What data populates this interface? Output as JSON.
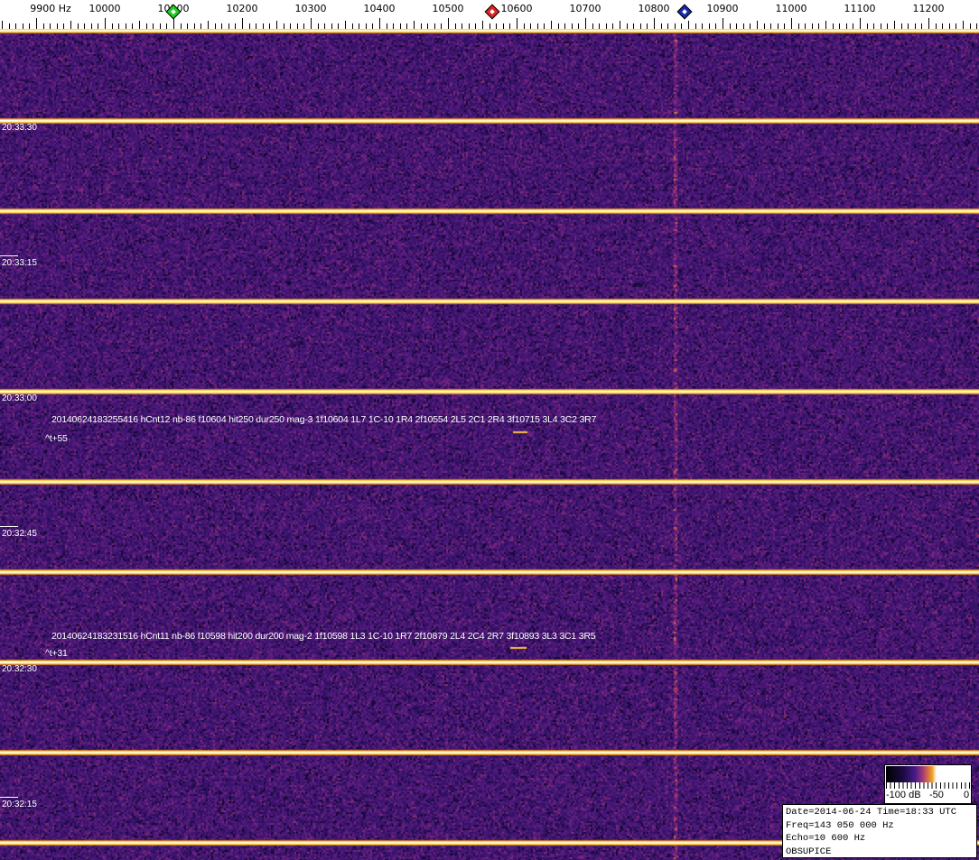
{
  "chart_data": {
    "type": "heatmap",
    "x_axis": {
      "unit_label": "9900 Hz",
      "ticks": [
        "10000",
        "10100",
        "10200",
        "10300",
        "10400",
        "10500",
        "10600",
        "10700",
        "10800",
        "10900",
        "11000",
        "11100",
        "11200"
      ],
      "range_hz": [
        9870,
        11280
      ],
      "position": "top"
    },
    "y_axis": {
      "time_labels": [
        "20:33:30",
        "20:33:15",
        "20:33:00",
        "20:32:45",
        "20:32:30",
        "20:32:15"
      ],
      "direction": "time decreasing downward"
    },
    "markers": [
      {
        "name": "green-marker",
        "freq_hz": 10100,
        "color": "#22cc22"
      },
      {
        "name": "red-marker",
        "freq_hz": 10565,
        "color": "#dd2222"
      },
      {
        "name": "blue-marker",
        "freq_hz": 10845,
        "color": "#1a2aa8"
      }
    ],
    "colorbar": {
      "labels": [
        "-100 dB",
        "-50",
        "0"
      ],
      "range_db": [
        -100,
        0
      ],
      "colormap": "black-purple-orange-white"
    },
    "annotations": [
      {
        "text": "20140624183255416 hCnt12 nb-86 f10604 hit250 dur250 mag-3 1f10604 1L7 1C-10 1R4 2f10554 2L5 2C1 2R4 3f10715 3L4 3C2 3R7",
        "offset": "^t+55"
      },
      {
        "text": "20140624183231516 hCnt11 nb-86 f10598 hit200 dur200 mag-2 1f10598 1L3 1C-10 1R7 2f10879 2L4 2C4 2R7 3f10893 3L3 3C1 3R5",
        "offset": "^t+31"
      }
    ],
    "features": {
      "horizontal_bands_every_s": 10,
      "carrier_freq_hz": 10830
    }
  },
  "info": {
    "line1": "Date=2014-06-24 Time=18:33 UTC",
    "line2": "Freq=143 050 000 Hz",
    "line3": "Echo=10 600 Hz",
    "line4": "OBSUPICE"
  },
  "colors": {
    "background": "#3b1466",
    "band": "#ffd040",
    "text": "#ffffff"
  }
}
